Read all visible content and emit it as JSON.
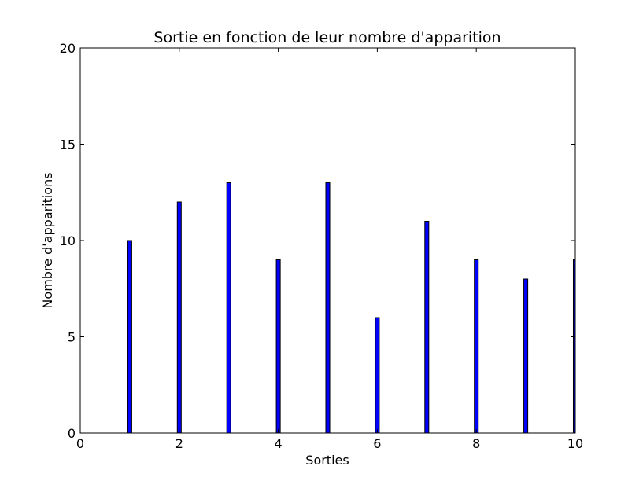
{
  "chart_data": {
    "type": "bar",
    "title": "Sortie en fonction de leur nombre d'apparition",
    "xlabel": "Sorties",
    "ylabel": "Nombre d'apparitions",
    "xlim": [
      0,
      10
    ],
    "ylim": [
      0,
      20
    ],
    "xticks": [
      0,
      2,
      4,
      6,
      8,
      10
    ],
    "yticks": [
      0,
      5,
      10,
      15,
      20
    ],
    "grid": false,
    "bar_color": "#0000ff",
    "bar_edge_color": "#000000",
    "x": [
      1,
      2,
      3,
      4,
      5,
      6,
      7,
      8,
      9,
      10
    ],
    "values": [
      10,
      12,
      13,
      9,
      13,
      6,
      11,
      9,
      8,
      9
    ]
  }
}
